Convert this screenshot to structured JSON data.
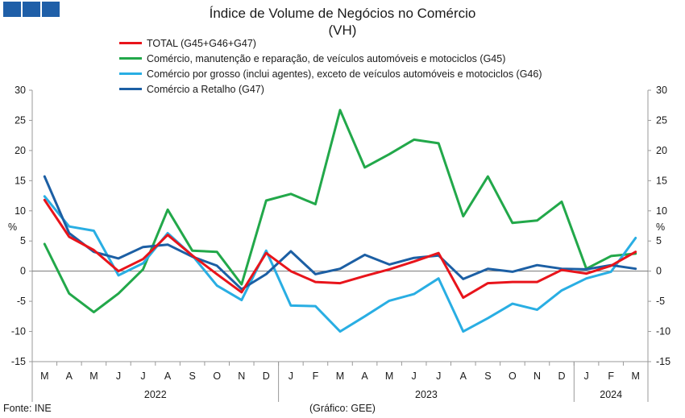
{
  "title_line1": "Índice de Volume de Negócios no Comércio",
  "title_line2": "(VH)",
  "source": "Fonte: INE",
  "credit": "(Gráfico: GEE)",
  "chart_data": {
    "type": "line",
    "categories": [
      "M",
      "A",
      "M",
      "J",
      "J",
      "A",
      "S",
      "O",
      "N",
      "D",
      "J",
      "F",
      "M",
      "A",
      "M",
      "J",
      "J",
      "A",
      "S",
      "O",
      "N",
      "D",
      "J",
      "F",
      "M"
    ],
    "year_groups": [
      {
        "label": "2022",
        "start": 0,
        "end": 9
      },
      {
        "label": "2023",
        "start": 10,
        "end": 21
      },
      {
        "label": "2024",
        "start": 22,
        "end": 24
      }
    ],
    "y_unit_label": "%",
    "ylim": [
      -15,
      30
    ],
    "yticks": [
      -15,
      -10,
      -5,
      0,
      5,
      10,
      15,
      20,
      25,
      30
    ],
    "series": [
      {
        "name": "TOTAL (G45+G46+G47)",
        "color": "#e8141b",
        "values": [
          11.8,
          5.7,
          3.5,
          0.0,
          2.0,
          6.0,
          2.6,
          -0.5,
          -3.5,
          3.0,
          0.0,
          -1.8,
          -2.0,
          -0.8,
          0.3,
          1.6,
          3.0,
          -4.4,
          -2.0,
          -1.8,
          -1.8,
          0.2,
          -0.4,
          0.9,
          3.2
        ]
      },
      {
        "name": "Comércio, manutenção e reparação, de veículos automóveis e motociclos (G45)",
        "color": "#22a84a",
        "values": [
          4.5,
          -3.7,
          -6.8,
          -3.7,
          0.3,
          10.2,
          3.4,
          3.2,
          -2.2,
          11.7,
          12.8,
          11.1,
          26.7,
          17.2,
          19.4,
          21.8,
          21.2,
          9.1,
          15.7,
          8.0,
          8.4,
          11.5,
          0.4,
          2.5,
          2.9
        ]
      },
      {
        "name": "Comércio por grosso (inclui agentes), exceto de veículos automóveis e motociclos (G46)",
        "color": "#29aee3",
        "values": [
          12.4,
          7.4,
          6.7,
          -0.7,
          1.3,
          6.3,
          2.6,
          -2.4,
          -4.8,
          3.4,
          -5.7,
          -5.8,
          -10.0,
          -7.5,
          -4.9,
          -3.8,
          -1.2,
          -10.0,
          -7.8,
          -5.4,
          -6.4,
          -3.2,
          -1.2,
          -0.1,
          5.5
        ]
      },
      {
        "name": "Comércio a Retalho (G47)",
        "color": "#1c5fa4",
        "values": [
          15.7,
          6.3,
          3.2,
          2.1,
          4.0,
          4.4,
          2.4,
          0.9,
          -3.0,
          -0.5,
          3.3,
          -0.5,
          0.4,
          2.7,
          1.1,
          2.2,
          2.6,
          -1.3,
          0.4,
          -0.1,
          1.0,
          0.4,
          0.3,
          1.0,
          0.4
        ]
      }
    ]
  }
}
